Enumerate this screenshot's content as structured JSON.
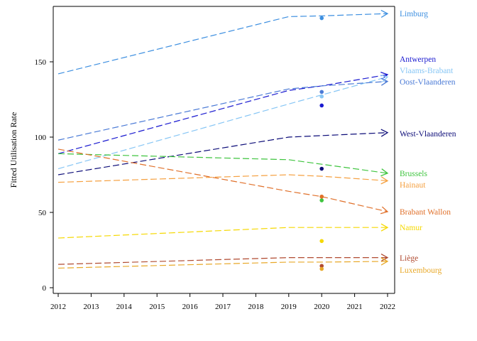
{
  "chart_data": {
    "type": "line",
    "title": "",
    "xlabel": "",
    "ylabel": "Fitted Utilisation Rate",
    "xlim": [
      2012,
      2022
    ],
    "ylim": [
      0,
      185
    ],
    "x_ticks": [
      2012,
      2013,
      2014,
      2015,
      2016,
      2017,
      2018,
      2019,
      2020,
      2021,
      2022
    ],
    "y_ticks": [
      0,
      50,
      100,
      150
    ],
    "grid": false,
    "legend": "direct labels at right end of lines",
    "x": [
      2012,
      2019,
      2020,
      2022
    ],
    "series": [
      {
        "name": "Limburg",
        "color": "#3d8fe0",
        "values": [
          142,
          180,
          180.5,
          182
        ],
        "observed_2020": 179
      },
      {
        "name": "Antwerpen",
        "color": "#1a1ad0",
        "values": [
          89,
          131,
          134,
          141.5
        ],
        "observed_2020": 121
      },
      {
        "name": "Vlaams-Brabant",
        "color": "#87c6f5",
        "values": [
          79,
          122,
          128,
          140
        ],
        "observed_2020": 127
      },
      {
        "name": "Oost-Vlaanderen",
        "color": "#4a7ad6",
        "values": [
          98,
          132,
          134,
          137
        ],
        "observed_2020": 130
      },
      {
        "name": "West-Vlaanderen",
        "color": "#0c0c78",
        "values": [
          75,
          100,
          101,
          103
        ],
        "observed_2020": 79
      },
      {
        "name": "Brussels",
        "color": "#3ec43e",
        "values": [
          89,
          85,
          82,
          76
        ],
        "observed_2020": 58
      },
      {
        "name": "Hainaut",
        "color": "#f5a040",
        "values": [
          70,
          75,
          74,
          71
        ],
        "observed_2020": 60.5
      },
      {
        "name": "Brabant Wallon",
        "color": "#e0702a",
        "values": [
          92,
          64,
          60.5,
          50.5
        ],
        "observed_2020": 60.5
      },
      {
        "name": "Namur",
        "color": "#f5d800",
        "values": [
          33,
          40,
          40,
          40
        ],
        "observed_2020": 31
      },
      {
        "name": "Liège",
        "color": "#b04a30",
        "values": [
          15.5,
          20,
          20,
          20
        ],
        "observed_2020": 14.5
      },
      {
        "name": "Luxembourg",
        "color": "#e8a828",
        "values": [
          13,
          17,
          17,
          17.5
        ],
        "observed_2020": 12.5
      }
    ]
  }
}
